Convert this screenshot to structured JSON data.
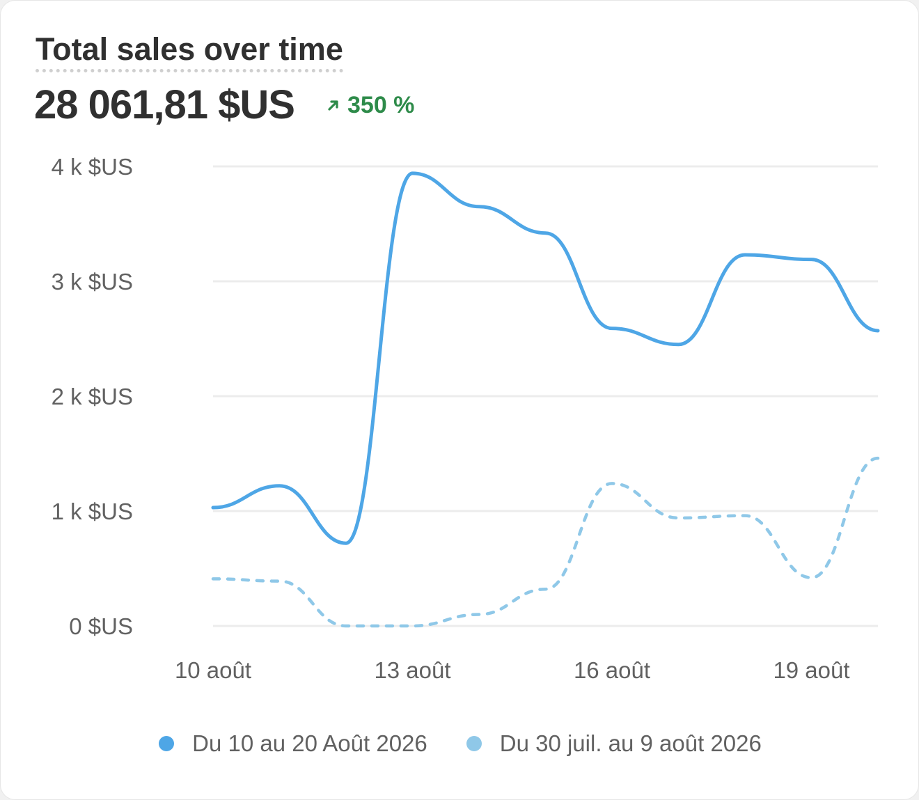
{
  "header": {
    "title": "Total sales over time",
    "total": "28 061,81 $US",
    "change": "350 %"
  },
  "colors": {
    "current": "#4ea6e6",
    "previous": "#8fc8e8",
    "positive": "#2e8b4a",
    "grid": "#ececec"
  },
  "chart_data": {
    "type": "line",
    "title": "Total sales over time",
    "x": [
      "10 août",
      "11 août",
      "12 août",
      "13 août",
      "14 août",
      "15 août",
      "16 août",
      "17 août",
      "18 août",
      "19 août",
      "20 août"
    ],
    "x_tick_labels": [
      "10 août",
      "13 août",
      "16 août",
      "19 août"
    ],
    "y_tick_labels": [
      "0 $US",
      "1 k $US",
      "2 k $US",
      "3 k $US",
      "4 k $US"
    ],
    "ylim": [
      0,
      4000
    ],
    "grid": true,
    "legend_position": "bottom",
    "series": [
      {
        "name": "Du 10 au 20 Août 2026",
        "style": "solid",
        "values": [
          1030,
          1220,
          720,
          3940,
          3650,
          3420,
          2590,
          2450,
          3230,
          3190,
          2570
        ]
      },
      {
        "name": "Du 30 juil. au 9 août 2026",
        "style": "dashed",
        "values": [
          410,
          390,
          0,
          0,
          100,
          320,
          1240,
          940,
          960,
          420,
          1460
        ]
      }
    ]
  }
}
